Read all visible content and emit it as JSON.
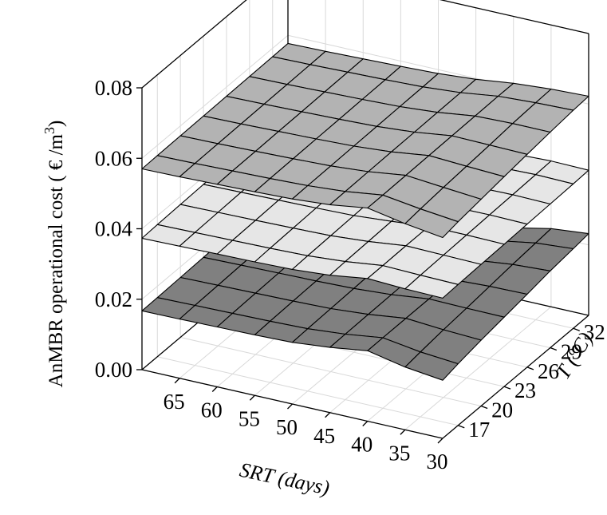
{
  "chart_data": {
    "type": "surface3d",
    "ylabel_prefix": "AnMBR operational cost ( € /m",
    "ylabel_exp": "3",
    "ylabel_suffix": ")",
    "xlabel_main": "SRT",
    "xlabel_unit": " (days)",
    "zlabel_main": "T",
    "zlabel_unit": " (ºC)",
    "x_ticks": [
      65,
      60,
      55,
      50,
      45,
      40,
      35,
      30
    ],
    "z_ticks": [
      17,
      20,
      23,
      26,
      29,
      32
    ],
    "y_ticks": [
      "0.00",
      "0.02",
      "0.04",
      "0.06",
      "0.08"
    ],
    "xlim": [
      30,
      70
    ],
    "zlim": [
      15,
      34
    ],
    "ylim": [
      0,
      0.08
    ],
    "srt_values": [
      70,
      65,
      60,
      55,
      50,
      45,
      40,
      35,
      30
    ],
    "t_values": [
      15,
      17,
      20,
      23,
      26,
      29,
      32,
      34
    ],
    "surfaces": [
      {
        "color": "#808080",
        "values": [
          [
            0.0167,
            0.0168,
            0.017,
            0.0172,
            0.0174,
            0.0176,
            0.0178,
            0.018
          ],
          [
            0.0168,
            0.017,
            0.0172,
            0.0174,
            0.0176,
            0.0178,
            0.018,
            0.0182
          ],
          [
            0.017,
            0.0172,
            0.0174,
            0.0176,
            0.0178,
            0.018,
            0.0182,
            0.0184
          ],
          [
            0.0172,
            0.0174,
            0.0176,
            0.0178,
            0.018,
            0.0182,
            0.0184,
            0.0186
          ],
          [
            0.0175,
            0.0177,
            0.0179,
            0.0181,
            0.0183,
            0.0185,
            0.0187,
            0.0189
          ],
          [
            0.0185,
            0.0186,
            0.0187,
            0.0188,
            0.0189,
            0.019,
            0.0191,
            0.0192
          ],
          [
            0.02,
            0.02,
            0.02,
            0.02,
            0.02,
            0.02,
            0.02,
            0.02
          ],
          [
            0.0178,
            0.0184,
            0.0192,
            0.0198,
            0.0205,
            0.0212,
            0.0218,
            0.0222
          ],
          [
            0.0165,
            0.0175,
            0.0187,
            0.0197,
            0.0207,
            0.0218,
            0.0226,
            0.0232
          ]
        ]
      },
      {
        "color": "#e6e6e6",
        "values": [
          [
            0.0373,
            0.0375,
            0.0377,
            0.0379,
            0.0381,
            0.0383,
            0.0385,
            0.0387
          ],
          [
            0.0375,
            0.0377,
            0.0379,
            0.0381,
            0.0383,
            0.0385,
            0.0387,
            0.0389
          ],
          [
            0.0377,
            0.0379,
            0.0381,
            0.0383,
            0.0385,
            0.0387,
            0.0389,
            0.0391
          ],
          [
            0.0379,
            0.0381,
            0.0383,
            0.0385,
            0.0387,
            0.0389,
            0.0391,
            0.0393
          ],
          [
            0.0382,
            0.0384,
            0.0386,
            0.0388,
            0.039,
            0.0392,
            0.0394,
            0.0396
          ],
          [
            0.039,
            0.0392,
            0.0394,
            0.0396,
            0.0398,
            0.04,
            0.0402,
            0.0404
          ],
          [
            0.0405,
            0.0405,
            0.0406,
            0.0406,
            0.0407,
            0.0408,
            0.0409,
            0.041
          ],
          [
            0.04,
            0.0402,
            0.0404,
            0.0406,
            0.0408,
            0.041,
            0.0412,
            0.0414
          ],
          [
            0.0398,
            0.04,
            0.0402,
            0.0404,
            0.0406,
            0.0408,
            0.041,
            0.0412
          ]
        ]
      },
      {
        "color": "#b3b3b3",
        "values": [
          [
            0.057,
            0.0571,
            0.0572,
            0.0573,
            0.0574,
            0.0575,
            0.0576,
            0.0577
          ],
          [
            0.0572,
            0.0573,
            0.0574,
            0.0575,
            0.0576,
            0.0577,
            0.0578,
            0.0579
          ],
          [
            0.0575,
            0.0576,
            0.0577,
            0.0578,
            0.0579,
            0.058,
            0.0581,
            0.0582
          ],
          [
            0.0578,
            0.0579,
            0.058,
            0.0581,
            0.0582,
            0.0583,
            0.0584,
            0.0585
          ],
          [
            0.0582,
            0.0583,
            0.0584,
            0.0585,
            0.0586,
            0.0587,
            0.0588,
            0.0589
          ],
          [
            0.059,
            0.0591,
            0.0592,
            0.0593,
            0.0594,
            0.0595,
            0.0596,
            0.0597
          ],
          [
            0.0605,
            0.0605,
            0.0606,
            0.0607,
            0.0608,
            0.0609,
            0.061,
            0.061
          ],
          [
            0.0585,
            0.059,
            0.0596,
            0.0601,
            0.0606,
            0.0612,
            0.0616,
            0.0618
          ],
          [
            0.057,
            0.0578,
            0.0587,
            0.0596,
            0.0604,
            0.0612,
            0.0619,
            0.0622
          ]
        ]
      }
    ]
  }
}
